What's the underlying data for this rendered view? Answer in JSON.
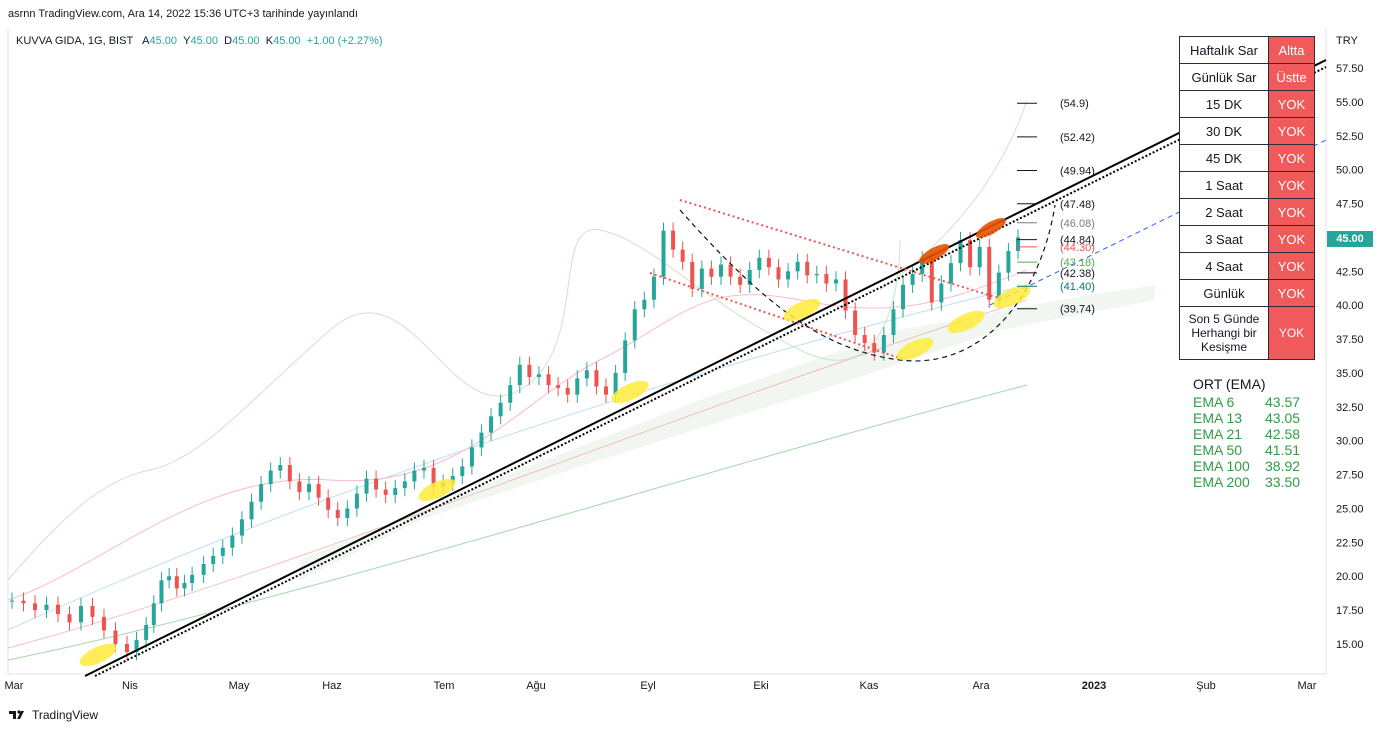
{
  "header": {
    "published": "asrnn TradingView.com, Ara 14, 2022 15:36 UTC+3 tarihinde yayınlandı"
  },
  "symbol": {
    "name": "KUVVA GIDA, 1G, BIST",
    "o_label": "A",
    "o": "45.00",
    "h_label": "Y",
    "h": "45.00",
    "l_label": "D",
    "l": "45.00",
    "c_label": "K",
    "c": "45.00",
    "change": "+1.00 (+2.27%)"
  },
  "currency": "TRY",
  "last_price": "45.00",
  "footer": {
    "brand": "TradingView"
  },
  "sar_table": [
    {
      "label": "Haftalık Sar",
      "value": "Altta"
    },
    {
      "label": "Günlük Sar",
      "value": "Üstte"
    },
    {
      "label": "15 DK",
      "value": "YOK"
    },
    {
      "label": "30 DK",
      "value": "YOK"
    },
    {
      "label": "45 DK",
      "value": "YOK"
    },
    {
      "label": "1 Saat",
      "value": "YOK"
    },
    {
      "label": "2 Saat",
      "value": "YOK"
    },
    {
      "label": "3 Saat",
      "value": "YOK"
    },
    {
      "label": "4 Saat",
      "value": "YOK"
    },
    {
      "label": "Günlük",
      "value": "YOK"
    },
    {
      "label": "Son 5 Günde Herhangi bir Kesişme",
      "value": "YOK"
    }
  ],
  "ema_panel": {
    "title": "ORT (EMA)",
    "rows": [
      {
        "name": "EMA 6",
        "value": "43.57"
      },
      {
        "name": "EMA 13",
        "value": "43.05"
      },
      {
        "name": "EMA 21",
        "value": "42.58"
      },
      {
        "name": "EMA 50",
        "value": "41.51"
      },
      {
        "name": "EMA 100",
        "value": "38.92"
      },
      {
        "name": "EMA 200",
        "value": "33.50"
      }
    ]
  },
  "colors": {
    "up": "#26a69a",
    "down": "#ef5350",
    "sar_bg": "#f05a5a",
    "ema_text": "#2ea043"
  },
  "chart_data": {
    "type": "candlestick",
    "title": "KUVVA GIDA, 1G, BIST",
    "y_ticks": [
      15.0,
      17.5,
      20.0,
      22.5,
      25.0,
      27.5,
      30.0,
      32.5,
      35.0,
      37.5,
      40.0,
      42.5,
      45.0,
      47.5,
      50.0,
      52.5,
      55.0,
      57.5
    ],
    "ylim": [
      12.5,
      59.5
    ],
    "x_ticks": [
      "Mar",
      "Nis",
      "May",
      "Haz",
      "Tem",
      "Ağu",
      "Eyl",
      "Eki",
      "Kas",
      "Ara",
      "2023",
      "Şub",
      "Mar"
    ],
    "levels": [
      {
        "label": "(54.9)",
        "value": 54.9,
        "color": "#131722"
      },
      {
        "label": "(52.42)",
        "value": 52.42,
        "color": "#131722"
      },
      {
        "label": "(49.94)",
        "value": 49.94,
        "color": "#131722"
      },
      {
        "label": "(47.48)",
        "value": 47.48,
        "color": "#131722"
      },
      {
        "label": "(46.08)",
        "value": 46.08,
        "color": "#787b86"
      },
      {
        "label": "(44.84)",
        "value": 44.84,
        "color": "#131722"
      },
      {
        "label": "(44.30)",
        "value": 44.3,
        "color": "#ef5350"
      },
      {
        "label": "(43.18)",
        "value": 43.18,
        "color": "#4caf50"
      },
      {
        "label": "(42.38)",
        "value": 42.38,
        "color": "#131722"
      },
      {
        "label": "(41.40)",
        "value": 41.4,
        "color": "#00796b"
      },
      {
        "label": "(39.74)",
        "value": 39.74,
        "color": "#131722"
      }
    ],
    "series": [
      {
        "name": "close",
        "points": [
          [
            0.0,
            18.2
          ],
          [
            0.6,
            18.0
          ],
          [
            1.2,
            17.5
          ],
          [
            1.8,
            17.9
          ],
          [
            2.4,
            17.2
          ],
          [
            3.0,
            16.6
          ],
          [
            3.6,
            17.8
          ],
          [
            4.2,
            17.0
          ],
          [
            4.8,
            16.0
          ],
          [
            5.4,
            15.0
          ],
          [
            6.0,
            14.4
          ],
          [
            6.5,
            15.3
          ],
          [
            7.0,
            16.4
          ],
          [
            7.4,
            18.0
          ],
          [
            7.8,
            19.7
          ],
          [
            8.2,
            20.0
          ],
          [
            8.6,
            19.1
          ],
          [
            9.0,
            19.5
          ],
          [
            9.4,
            20.1
          ],
          [
            10.0,
            20.9
          ],
          [
            10.5,
            21.5
          ],
          [
            11.0,
            22.1
          ],
          [
            11.5,
            23.0
          ],
          [
            12.0,
            24.2
          ],
          [
            12.5,
            25.5
          ],
          [
            13.0,
            26.8
          ],
          [
            13.5,
            27.8
          ],
          [
            14.0,
            28.2
          ],
          [
            14.5,
            27.0
          ],
          [
            15.0,
            26.2
          ],
          [
            15.5,
            26.8
          ],
          [
            16.0,
            25.8
          ],
          [
            16.5,
            24.9
          ],
          [
            17.0,
            24.3
          ],
          [
            17.5,
            25.0
          ],
          [
            18.0,
            26.1
          ],
          [
            18.5,
            27.2
          ],
          [
            19.0,
            26.4
          ],
          [
            19.5,
            26.0
          ],
          [
            20.0,
            26.5
          ],
          [
            20.5,
            27.0
          ],
          [
            21.0,
            27.8
          ],
          [
            21.5,
            28.0
          ],
          [
            22.0,
            26.6
          ],
          [
            22.5,
            26.9
          ],
          [
            23.0,
            27.4
          ],
          [
            23.5,
            28.1
          ],
          [
            24.0,
            29.5
          ],
          [
            24.5,
            30.6
          ],
          [
            25.0,
            31.8
          ],
          [
            25.5,
            32.8
          ],
          [
            26.0,
            34.1
          ],
          [
            26.5,
            35.6
          ],
          [
            27.0,
            34.7
          ],
          [
            27.5,
            34.9
          ],
          [
            28.0,
            34.1
          ],
          [
            28.5,
            33.9
          ],
          [
            29.0,
            33.4
          ],
          [
            29.5,
            34.6
          ],
          [
            30.0,
            35.2
          ],
          [
            30.5,
            34.0
          ],
          [
            31.0,
            33.4
          ],
          [
            31.5,
            35.0
          ],
          [
            32.0,
            37.4
          ],
          [
            32.5,
            39.7
          ],
          [
            33.0,
            40.4
          ],
          [
            33.5,
            42.1
          ],
          [
            34.0,
            45.5
          ],
          [
            34.5,
            44.1
          ],
          [
            35.0,
            43.2
          ],
          [
            35.5,
            41.2
          ],
          [
            36.0,
            42.7
          ],
          [
            36.5,
            42.1
          ],
          [
            37.0,
            43.0
          ],
          [
            37.5,
            42.1
          ],
          [
            38.0,
            41.5
          ],
          [
            38.5,
            42.6
          ],
          [
            39.0,
            43.5
          ],
          [
            39.5,
            42.8
          ],
          [
            40.0,
            41.9
          ],
          [
            40.5,
            42.5
          ],
          [
            41.0,
            43.2
          ],
          [
            41.5,
            42.2
          ],
          [
            42.0,
            42.3
          ],
          [
            42.5,
            41.6
          ],
          [
            43.0,
            41.9
          ],
          [
            43.5,
            39.6
          ],
          [
            44.0,
            37.8
          ],
          [
            44.5,
            37.2
          ],
          [
            45.0,
            36.5
          ],
          [
            45.5,
            37.8
          ],
          [
            46.0,
            39.7
          ],
          [
            46.5,
            41.5
          ],
          [
            47.0,
            42.3
          ],
          [
            47.5,
            43.4
          ],
          [
            48.0,
            40.2
          ],
          [
            48.5,
            41.6
          ],
          [
            49.0,
            43.1
          ],
          [
            49.5,
            44.8
          ],
          [
            50.0,
            42.8
          ],
          [
            50.5,
            44.3
          ],
          [
            51.0,
            40.4
          ],
          [
            51.5,
            42.4
          ],
          [
            52.0,
            44.0
          ],
          [
            52.5,
            45.0
          ]
        ]
      },
      {
        "name": "EMA 6",
        "value": 43.57
      },
      {
        "name": "EMA 13",
        "value": 43.05
      },
      {
        "name": "EMA 21",
        "value": 42.58
      },
      {
        "name": "EMA 50",
        "value": 41.51
      },
      {
        "name": "EMA 100",
        "value": 38.92
      },
      {
        "name": "EMA 200",
        "value": 33.5
      }
    ],
    "grid": false,
    "legend": "top-left"
  }
}
